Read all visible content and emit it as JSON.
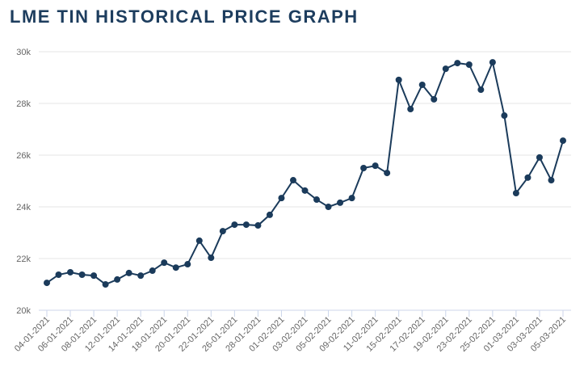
{
  "chart_data": {
    "type": "line",
    "title": "LME TIN HISTORICAL PRICE GRAPH",
    "xlabel": "",
    "ylabel": "",
    "ylim": [
      20000,
      30000
    ],
    "yticks": [
      20000,
      22000,
      24000,
      26000,
      28000,
      30000
    ],
    "ytick_labels": [
      "20k",
      "22k",
      "24k",
      "26k",
      "28k",
      "30k"
    ],
    "grid": true,
    "color": "#1b3b5b",
    "x": [
      "04-01-2021",
      "05-01-2021",
      "06-01-2021",
      "07-01-2021",
      "08-01-2021",
      "11-01-2021",
      "12-01-2021",
      "13-01-2021",
      "14-01-2021",
      "15-01-2021",
      "18-01-2021",
      "19-01-2021",
      "20-01-2021",
      "21-01-2021",
      "22-01-2021",
      "25-01-2021",
      "26-01-2021",
      "27-01-2021",
      "28-01-2021",
      "29-01-2021",
      "01-02-2021",
      "02-02-2021",
      "03-02-2021",
      "04-02-2021",
      "05-02-2021",
      "08-02-2021",
      "09-02-2021",
      "10-02-2021",
      "11-02-2021",
      "12-02-2021",
      "15-02-2021",
      "16-02-2021",
      "17-02-2021",
      "18-02-2021",
      "19-02-2021",
      "22-02-2021",
      "23-02-2021",
      "24-02-2021",
      "25-02-2021",
      "26-02-2021",
      "01-03-2021",
      "02-03-2021",
      "03-03-2021",
      "04-03-2021",
      "05-03-2021"
    ],
    "values": [
      21060,
      21375,
      21470,
      21375,
      21340,
      21000,
      21190,
      21440,
      21340,
      21530,
      21840,
      21650,
      21780,
      22690,
      22030,
      23060,
      23310,
      23310,
      23280,
      23690,
      24340,
      25030,
      24630,
      24280,
      24000,
      24160,
      24340,
      25500,
      25590,
      25310,
      28910,
      27780,
      28720,
      28160,
      29340,
      29560,
      29500,
      28530,
      29590,
      27530,
      24530,
      25130,
      25910,
      25030,
      26560
    ]
  }
}
